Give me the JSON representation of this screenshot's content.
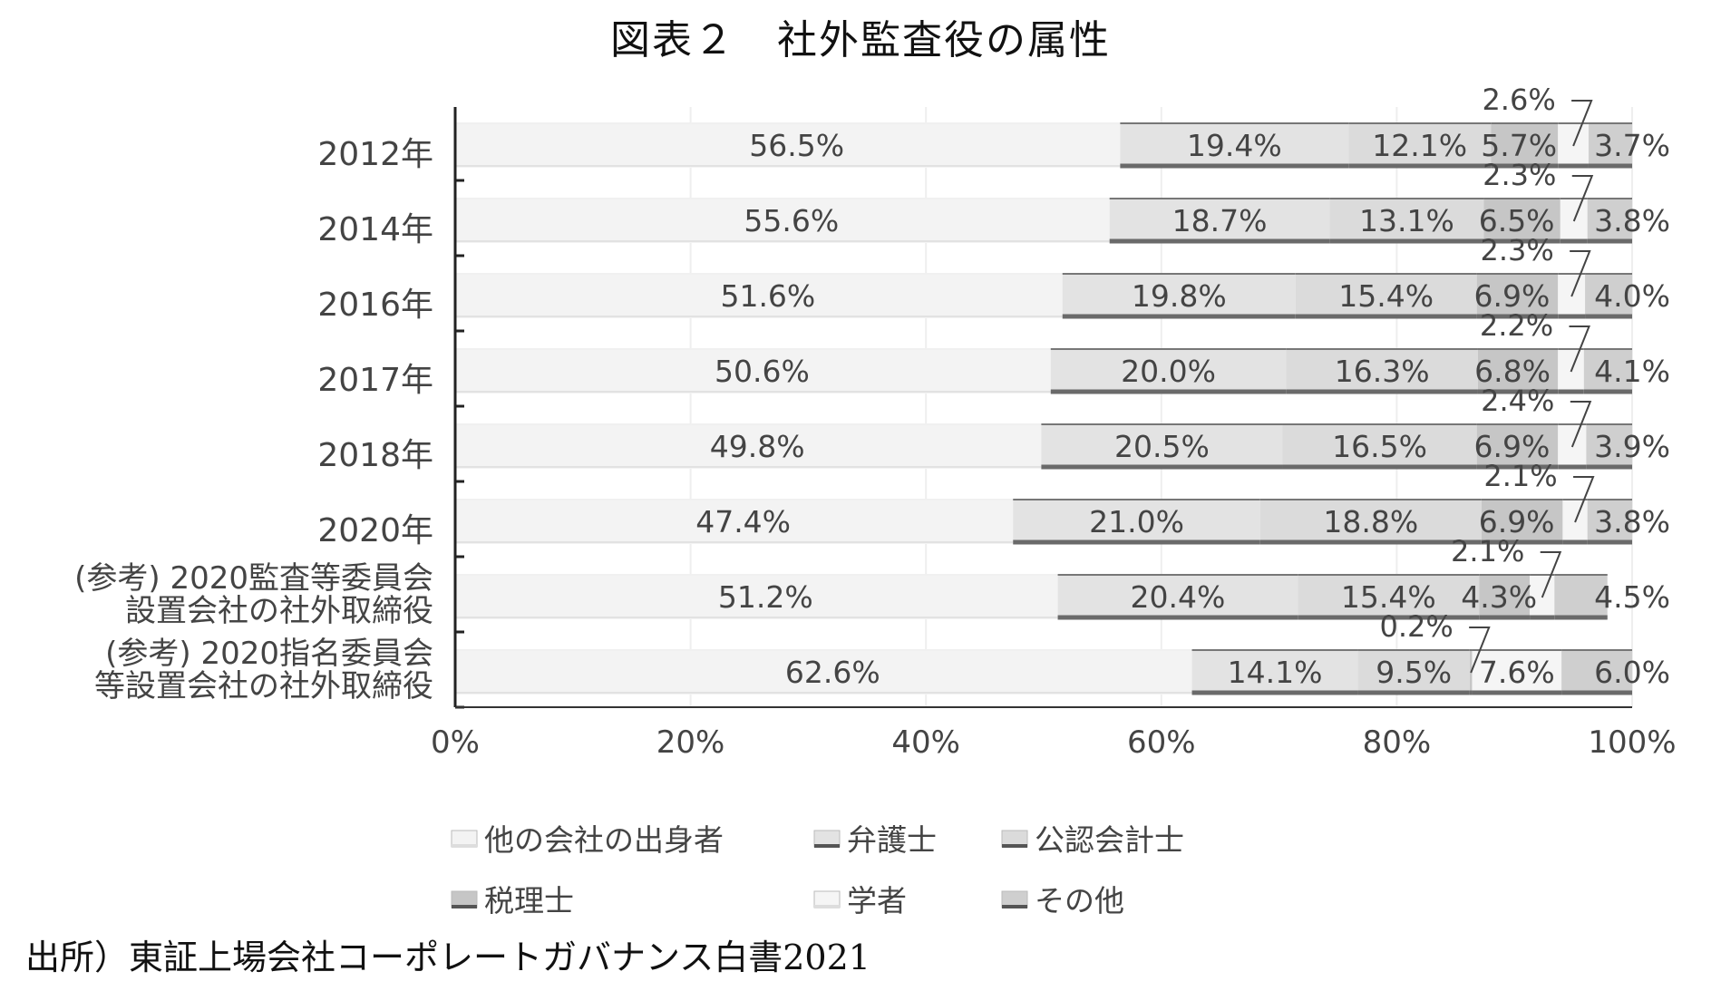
{
  "title": "図表２　社外監査役の属性",
  "source": "出所）東証上場会社コーポレートガバナンス白書2021",
  "chart_data": {
    "type": "bar",
    "orientation": "horizontal",
    "stacked": "100%",
    "categories": [
      [
        "2012年"
      ],
      [
        "2014年"
      ],
      [
        "2016年"
      ],
      [
        "2017年"
      ],
      [
        "2018年"
      ],
      [
        "2020年"
      ],
      [
        "(参考) 2020監査等委員会",
        "設置会社の社外取締役"
      ],
      [
        "(参考) 2020指名委員会",
        "等設置会社の社外取締役"
      ]
    ],
    "series": [
      {
        "name": "他の会社の出身者",
        "color": "#f3f3f3",
        "values": [
          56.5,
          55.6,
          51.6,
          50.6,
          49.8,
          47.4,
          51.2,
          62.6
        ]
      },
      {
        "name": "弁護士",
        "color": "#e3e3e3",
        "values": [
          19.4,
          18.7,
          19.8,
          20.0,
          20.5,
          21.0,
          20.4,
          14.1
        ]
      },
      {
        "name": "公認会計士",
        "color": "#dbdbdb",
        "values": [
          12.1,
          13.1,
          15.4,
          16.3,
          16.5,
          18.8,
          15.4,
          9.5
        ]
      },
      {
        "name": "税理士",
        "color": "#c6c6c6",
        "values": [
          5.7,
          6.5,
          6.9,
          6.8,
          6.9,
          6.9,
          4.3,
          0.2
        ]
      },
      {
        "name": "学者",
        "color": "#f5f5f5",
        "values": [
          2.6,
          2.3,
          2.3,
          2.2,
          2.4,
          2.1,
          2.1,
          7.6
        ]
      },
      {
        "name": "その他",
        "color": "#cfcfcf",
        "values": [
          3.7,
          3.8,
          4.0,
          4.1,
          3.9,
          3.8,
          4.5,
          6.0
        ]
      }
    ],
    "labels": [
      [
        "56.5%",
        "19.4%",
        "12.1%",
        "5.7%",
        "2.6%",
        "3.7%"
      ],
      [
        "55.6%",
        "18.7%",
        "13.1%",
        "6.5%",
        "2.3%",
        "3.8%"
      ],
      [
        "51.6%",
        "19.8%",
        "15.4%",
        "6.9%",
        "2.3%",
        "4.0%"
      ],
      [
        "50.6%",
        "20.0%",
        "16.3%",
        "6.8%",
        "2.2%",
        "4.1%"
      ],
      [
        "49.8%",
        "20.5%",
        "16.5%",
        "6.9%",
        "2.4%",
        "3.9%"
      ],
      [
        "47.4%",
        "21.0%",
        "18.8%",
        "6.9%",
        "2.1%",
        "3.8%"
      ],
      [
        "51.2%",
        "20.4%",
        "15.4%",
        "4.3%",
        "2.1%",
        "4.5%"
      ],
      [
        "62.6%",
        "14.1%",
        "9.5%",
        "0.2%",
        "7.6%",
        "6.0%"
      ]
    ],
    "callout_series": [
      4,
      4,
      4,
      4,
      4,
      4,
      4,
      3
    ],
    "xticks": [
      "0%",
      "20%",
      "40%",
      "60%",
      "80%",
      "100%"
    ],
    "xlim": [
      0,
      100
    ],
    "grid": true,
    "legend_position": "bottom"
  }
}
